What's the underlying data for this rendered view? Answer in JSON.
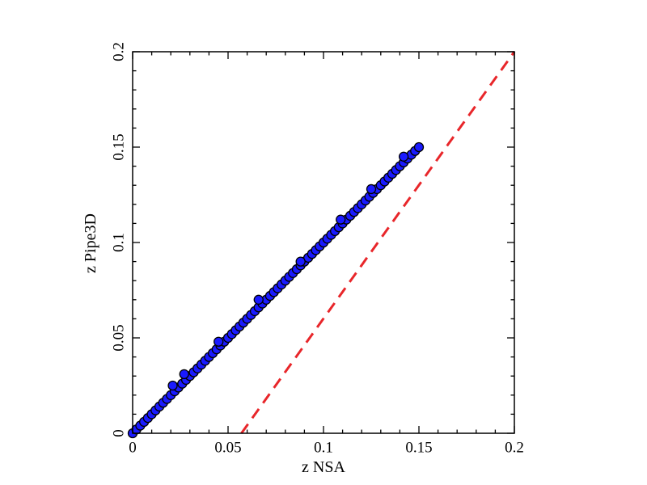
{
  "chart_data": {
    "type": "scatter",
    "title": "",
    "xlabel": "z NSA",
    "ylabel": "z Pipe3D",
    "xlim": [
      0,
      0.2
    ],
    "ylim": [
      0,
      0.2
    ],
    "xticks": [
      0,
      0.05,
      0.1,
      0.15,
      0.2
    ],
    "yticks": [
      0,
      0.05,
      0.1,
      0.15,
      0.2
    ],
    "xtick_labels": [
      "0",
      "0.05",
      "0.1",
      "0.15",
      "0.2"
    ],
    "ytick_labels": [
      "0",
      "0.05",
      "0.1",
      "0.15",
      "0.2"
    ],
    "grid": false,
    "legend": "none",
    "reference_line": {
      "style": "dashed",
      "color": "#e8262a",
      "points": [
        [
          0.057,
          0
        ],
        [
          0.2,
          0.2
        ]
      ]
    },
    "marker": {
      "fill": "#1a1aff",
      "edge": "#000000"
    },
    "series": [
      {
        "x": [
          0.0,
          0.002,
          0.004,
          0.006,
          0.008,
          0.01,
          0.012,
          0.014,
          0.016,
          0.018,
          0.02,
          0.022,
          0.024,
          0.026,
          0.028,
          0.03,
          0.032,
          0.034,
          0.036,
          0.038,
          0.04,
          0.042,
          0.044,
          0.046,
          0.048,
          0.05,
          0.052,
          0.054,
          0.056,
          0.058,
          0.06,
          0.062,
          0.064,
          0.066,
          0.068,
          0.07,
          0.072,
          0.074,
          0.076,
          0.078,
          0.08,
          0.082,
          0.084,
          0.086,
          0.088,
          0.09,
          0.092,
          0.094,
          0.096,
          0.098,
          0.1,
          0.102,
          0.104,
          0.106,
          0.108,
          0.11,
          0.112,
          0.114,
          0.116,
          0.118,
          0.12,
          0.122,
          0.124,
          0.126,
          0.128,
          0.13,
          0.132,
          0.134,
          0.136,
          0.138,
          0.14,
          0.142,
          0.144,
          0.146,
          0.148,
          0.15,
          0.021,
          0.027,
          0.045,
          0.066,
          0.088,
          0.109,
          0.125,
          0.142
        ],
        "y": [
          0.0,
          0.002,
          0.004,
          0.006,
          0.008,
          0.01,
          0.012,
          0.014,
          0.016,
          0.018,
          0.02,
          0.022,
          0.024,
          0.026,
          0.028,
          0.03,
          0.032,
          0.034,
          0.036,
          0.038,
          0.04,
          0.042,
          0.044,
          0.046,
          0.048,
          0.05,
          0.052,
          0.054,
          0.056,
          0.058,
          0.06,
          0.062,
          0.064,
          0.066,
          0.068,
          0.07,
          0.072,
          0.074,
          0.076,
          0.078,
          0.08,
          0.082,
          0.084,
          0.086,
          0.088,
          0.09,
          0.092,
          0.094,
          0.096,
          0.098,
          0.1,
          0.102,
          0.104,
          0.106,
          0.108,
          0.11,
          0.112,
          0.114,
          0.116,
          0.118,
          0.12,
          0.122,
          0.124,
          0.126,
          0.128,
          0.13,
          0.132,
          0.134,
          0.136,
          0.138,
          0.14,
          0.142,
          0.144,
          0.146,
          0.148,
          0.15,
          0.025,
          0.031,
          0.048,
          0.07,
          0.09,
          0.112,
          0.128,
          0.145
        ]
      }
    ]
  }
}
